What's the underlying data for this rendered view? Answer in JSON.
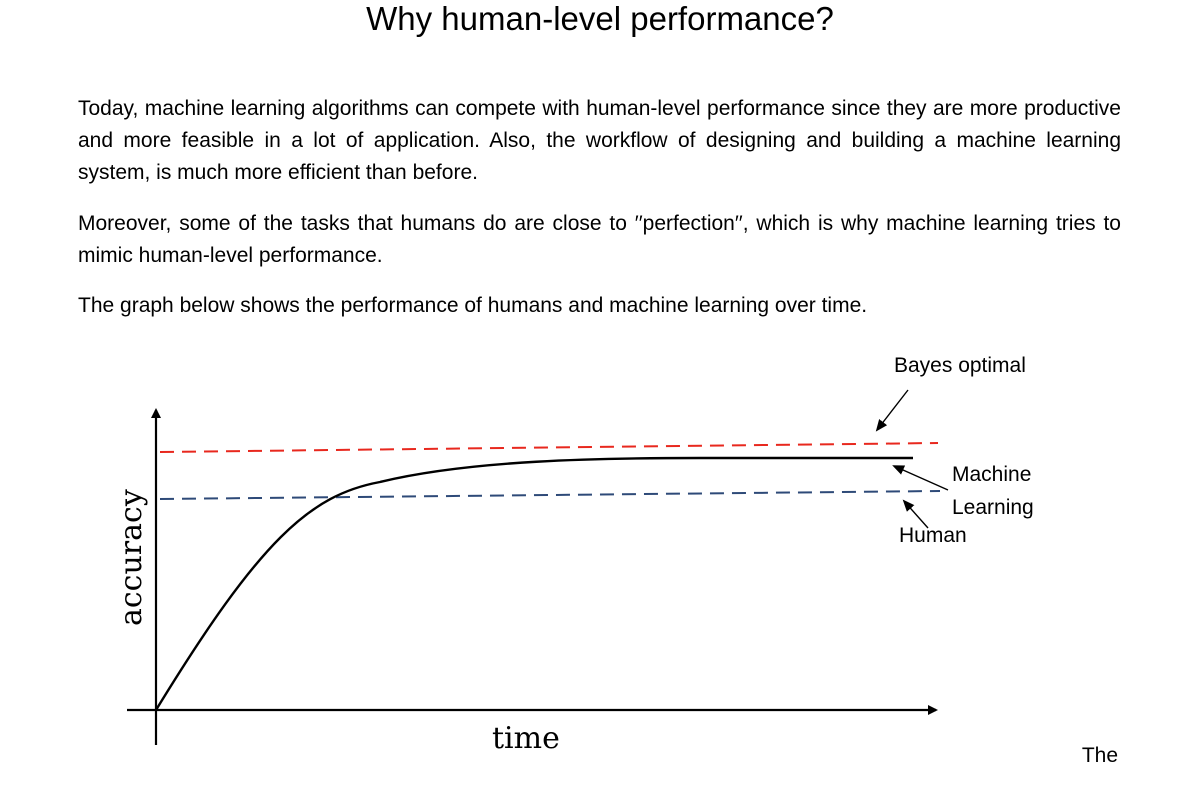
{
  "document": {
    "title": "Why human-level performance?",
    "paragraphs": [
      "Today, machine learning algorithms can compete with human-level performance since they are more productive and more feasible in a lot of application. Also, the workflow of designing and building a machine learning system, is much more efficient than before.",
      "Moreover, some of the tasks that humans do are close to ′′perfection′′, which is why machine learning tries to mimic human-level performance.",
      "The graph below shows the performance of humans and machine learning over time."
    ],
    "trailing_text": "The"
  },
  "figure": {
    "labels": {
      "bayes": "Bayes optimal",
      "machine_line1": "Machine",
      "machine_line2": "Learning",
      "human": "Human",
      "xlabel": "time",
      "ylabel": "accuracy"
    },
    "colors": {
      "bayes": "#e8281e",
      "human": "#2e4a78",
      "machine": "#000000",
      "axes": "#000000"
    }
  }
}
